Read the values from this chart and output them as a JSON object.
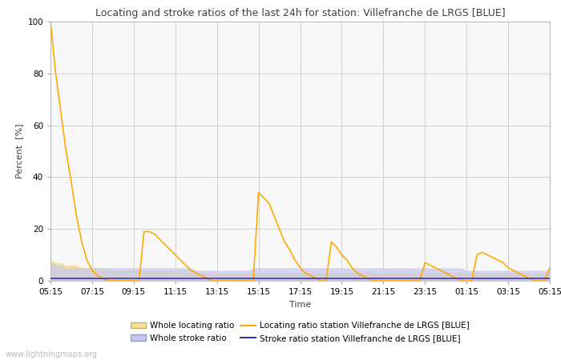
{
  "title": "Locating and stroke ratios of the last 24h for station: Villefranche de LRGS [BLUE]",
  "ylabel": "Percent  [%]",
  "xlabel": "Time",
  "watermark": "www.lightningmaps.org",
  "ylim": [
    0,
    100
  ],
  "yticks": [
    0,
    20,
    40,
    60,
    80,
    100
  ],
  "xtick_labels": [
    "05:15",
    "07:15",
    "09:15",
    "11:15",
    "13:15",
    "15:15",
    "17:15",
    "19:15",
    "21:15",
    "23:15",
    "01:15",
    "03:15",
    "05:15"
  ],
  "background_color": "#ffffff",
  "plot_bg_color": "#f8f8f8",
  "grid_color": "#d0d0d0",
  "whole_locating_fill_color": "#f0e0a0",
  "whole_locating_edge_color": "#c8b060",
  "locating_line_color": "#ffaa00",
  "whole_stroke_fill_color": "#c8c8ee",
  "whole_stroke_edge_color": "#9898cc",
  "stroke_line_color": "#3333bb",
  "legend_labels": [
    "Whole locating ratio",
    "Locating ratio station Villefranche de LRGS [BLUE]",
    "Whole stroke ratio",
    "Stroke ratio station Villefranche de LRGS [BLUE]"
  ],
  "n_points": 97,
  "whole_locating": [
    8,
    7,
    7,
    6,
    6,
    6,
    5,
    5,
    5,
    5,
    5,
    5,
    4,
    4,
    4,
    4,
    4,
    4,
    4,
    4,
    4,
    4,
    4,
    4,
    4,
    4,
    4,
    3,
    3,
    3,
    3,
    3,
    3,
    3,
    3,
    3,
    3,
    3,
    3,
    3,
    3,
    3,
    3,
    3,
    3,
    3,
    3,
    3,
    3,
    3,
    3,
    3,
    3,
    3,
    3,
    3,
    3,
    3,
    3,
    3,
    3,
    3,
    3,
    3,
    3,
    3,
    3,
    3,
    3,
    3,
    3,
    3,
    3,
    3,
    3,
    3,
    3,
    3,
    3,
    3,
    3,
    3,
    3,
    3,
    3,
    3,
    3,
    3,
    3,
    3,
    3,
    3,
    3,
    3,
    3,
    3,
    4
  ],
  "locating_station": [
    100,
    80,
    65,
    50,
    38,
    25,
    15,
    8,
    4,
    2,
    1,
    0,
    0,
    0,
    0,
    0,
    0,
    0,
    19,
    19,
    18,
    16,
    14,
    12,
    10,
    8,
    6,
    4,
    3,
    2,
    1,
    0,
    0,
    0,
    0,
    0,
    0,
    0,
    0,
    0,
    34,
    32,
    30,
    25,
    20,
    15,
    12,
    8,
    5,
    3,
    2,
    1,
    0,
    0,
    15,
    13,
    10,
    8,
    5,
    3,
    2,
    1,
    0,
    0,
    0,
    0,
    0,
    0,
    0,
    0,
    0,
    0,
    7,
    6,
    5,
    4,
    3,
    2,
    1,
    0,
    0,
    0,
    10,
    11,
    10,
    9,
    8,
    7,
    5,
    4,
    3,
    2,
    1,
    0,
    0,
    0,
    5
  ],
  "whole_stroke": [
    7,
    6,
    6,
    5,
    5,
    5,
    5,
    5,
    5,
    5,
    5,
    5,
    5,
    5,
    5,
    5,
    5,
    5,
    5,
    5,
    5,
    5,
    5,
    5,
    5,
    5,
    5,
    5,
    4,
    4,
    4,
    4,
    4,
    4,
    4,
    4,
    4,
    4,
    4,
    5,
    5,
    5,
    5,
    5,
    5,
    5,
    5,
    5,
    5,
    5,
    5,
    5,
    5,
    5,
    5,
    5,
    5,
    5,
    5,
    5,
    5,
    5,
    5,
    5,
    5,
    5,
    5,
    5,
    5,
    5,
    5,
    5,
    5,
    5,
    5,
    5,
    5,
    5,
    5,
    5,
    4,
    4,
    4,
    4,
    4,
    4,
    4,
    4,
    4,
    4,
    4,
    4,
    4,
    4,
    4,
    4,
    4
  ],
  "stroke_station": [
    1,
    1,
    1,
    1,
    1,
    1,
    1,
    1,
    1,
    1,
    1,
    1,
    1,
    1,
    1,
    1,
    1,
    1,
    1,
    1,
    1,
    1,
    1,
    1,
    1,
    1,
    1,
    1,
    1,
    1,
    1,
    1,
    1,
    1,
    1,
    1,
    1,
    1,
    1,
    1,
    1,
    1,
    1,
    1,
    1,
    1,
    1,
    1,
    1,
    1,
    1,
    1,
    1,
    1,
    1,
    1,
    1,
    1,
    1,
    1,
    1,
    1,
    1,
    1,
    1,
    1,
    1,
    1,
    1,
    1,
    1,
    1,
    1,
    1,
    1,
    1,
    1,
    1,
    1,
    1,
    1,
    1,
    1,
    1,
    1,
    1,
    1,
    1,
    1,
    1,
    1,
    1,
    1,
    1,
    1,
    1,
    1
  ]
}
